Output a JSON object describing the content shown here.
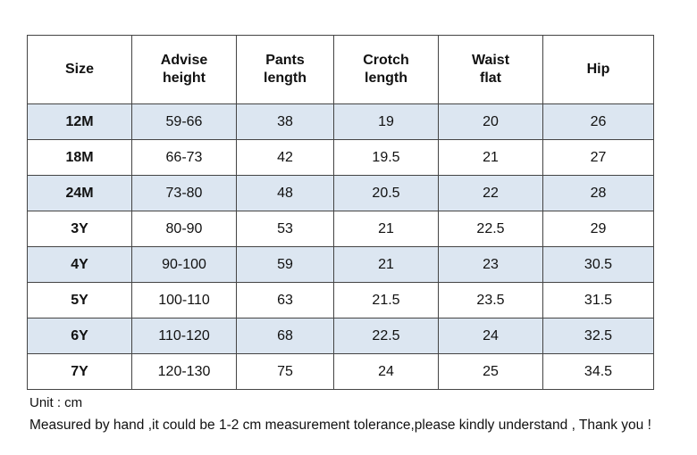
{
  "table": {
    "headers": [
      [
        "Size"
      ],
      [
        "Advise",
        "height"
      ],
      [
        "Pants",
        "length"
      ],
      [
        "Crotch",
        "length"
      ],
      [
        "Waist",
        "flat"
      ],
      [
        "Hip"
      ]
    ],
    "rows": [
      [
        "12M",
        "59-66",
        "38",
        "19",
        "20",
        "26"
      ],
      [
        "18M",
        "66-73",
        "42",
        "19.5",
        "21",
        "27"
      ],
      [
        "24M",
        "73-80",
        "48",
        "20.5",
        "22",
        "28"
      ],
      [
        "3Y",
        "80-90",
        "53",
        "21",
        "22.5",
        "29"
      ],
      [
        "4Y",
        "90-100",
        "59",
        "21",
        "23",
        "30.5"
      ],
      [
        "5Y",
        "100-110",
        "63",
        "21.5",
        "23.5",
        "31.5"
      ],
      [
        "6Y",
        "110-120",
        "68",
        "22.5",
        "24",
        "32.5"
      ],
      [
        "7Y",
        "120-130",
        "75",
        "24",
        "25",
        "34.5"
      ]
    ]
  },
  "notes": {
    "unit": "Unit : cm",
    "tolerance": "Measured by hand ,it could be 1-2 cm measurement tolerance,please kindly understand , Thank you !"
  },
  "colors": {
    "shaded_row": "#dce6f1",
    "border": "#444444"
  }
}
